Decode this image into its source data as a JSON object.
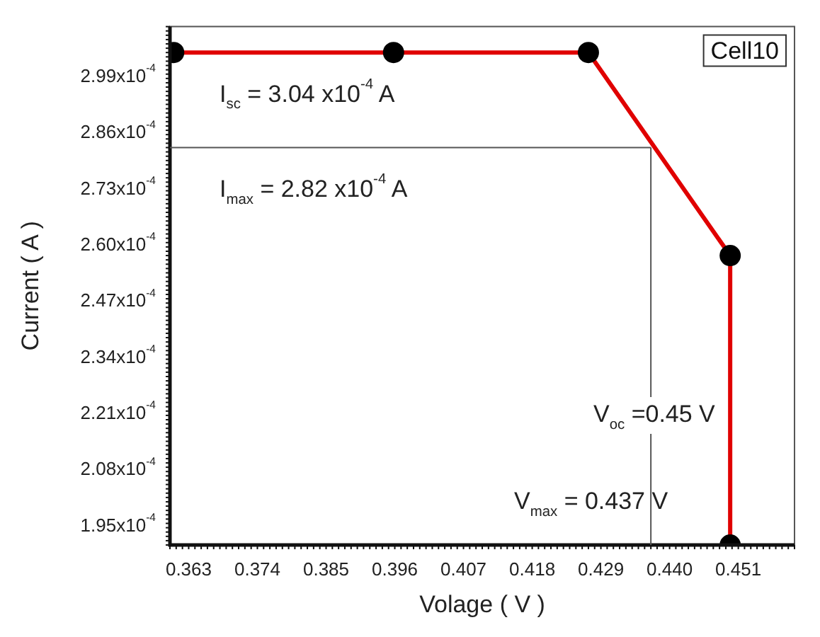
{
  "chart_data": {
    "type": "line",
    "xlabel": "Volage ( V )",
    "ylabel": "Current ( A )",
    "x": [
      0.3606,
      0.3958,
      0.427,
      0.4497,
      0.4497
    ],
    "series": [
      {
        "name": "Cell10",
        "color": "#e00000",
        "values": [
          0.000304,
          0.000304,
          0.000304,
          0.000257,
          0.00019
        ]
      }
    ],
    "xlim": [
      0.36,
      0.46
    ],
    "xticks": [
      0.363,
      0.374,
      0.385,
      0.396,
      0.407,
      0.418,
      0.429,
      {
        "value": 0.44,
        "label": "0.440"
      },
      0.451
    ],
    "ylim": [
      0.00019,
      0.00031
    ],
    "yticks": [
      {
        "value": 0.000195,
        "label": "1.95x10$^{-4}$"
      },
      {
        "value": 0.000208,
        "label": "2.08x10$^{-4}$"
      },
      {
        "value": 0.000221,
        "label": "2.21x10$^{-4}$"
      },
      {
        "value": 0.000234,
        "label": "2.34x10$^{-4}$"
      },
      {
        "value": 0.000247,
        "label": "2.47x10$^{-4}$"
      },
      {
        "value": 0.00026,
        "label": "2.60x10$^{-4}$"
      },
      {
        "value": 0.000273,
        "label": "2.73x10$^{-4}$"
      },
      {
        "value": 0.000286,
        "label": "2.86x10$^{-4}$"
      },
      {
        "value": 0.000299,
        "label": "2.99x10$^{-4}$"
      }
    ],
    "ref_lines": [
      {
        "axis": "y",
        "value": 0.000282,
        "color": "#555555"
      },
      {
        "axis": "x",
        "value": 0.437,
        "color": "#555555"
      }
    ],
    "annotations": [
      {
        "text": "I$_{sc}$ = 3.04 x10$^{-4}$ A",
        "y": 0.000304
      },
      {
        "text": "I$_{max}$ = 2.82 x10$^{-4}$ A",
        "y": 0.000282
      },
      {
        "text": "V$_{oc}$ =0.45 V",
        "x": 0.45
      },
      {
        "text": "V$_{max}$ = 0.437 V",
        "x": 0.437
      }
    ],
    "legend": "top right",
    "marker": "circle",
    "line_style": "solid",
    "grid": false
  }
}
